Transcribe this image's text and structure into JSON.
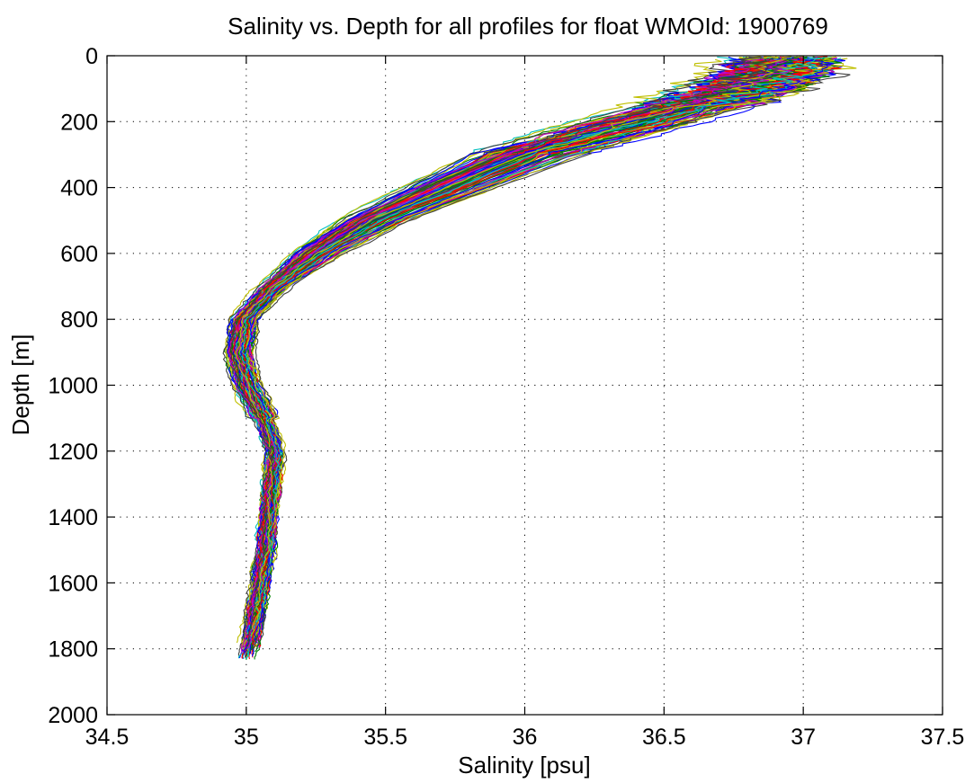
{
  "chart_data": {
    "type": "line",
    "title": "Salinity vs. Depth for all profiles for float WMOId: 1900769",
    "xlabel": "Salinity [psu]",
    "ylabel": "Depth [m]",
    "xlim": [
      34.5,
      37.5
    ],
    "ylim": [
      2000,
      0
    ],
    "y_inverted": true,
    "grid": true,
    "grid_style": "dotted",
    "x_ticks": [
      "34.5",
      "35",
      "35.5",
      "36",
      "36.5",
      "37",
      "37.5"
    ],
    "y_ticks": [
      "0",
      "200",
      "400",
      "600",
      "800",
      "1000",
      "1200",
      "1400",
      "1600",
      "1800",
      "2000"
    ],
    "series_colors": [
      "#0000ff",
      "#008000",
      "#ff0000",
      "#00bfbf",
      "#bf00bf",
      "#bfbf00",
      "#404040"
    ],
    "mean_profile": {
      "depth": [
        0,
        50,
        100,
        150,
        200,
        250,
        300,
        400,
        500,
        600,
        700,
        800,
        900,
        1000,
        1100,
        1200,
        1300,
        1400,
        1500,
        1600,
        1700,
        1800,
        1830
      ],
      "salinity": [
        36.95,
        36.9,
        36.78,
        36.6,
        36.4,
        36.2,
        36.0,
        35.72,
        35.45,
        35.25,
        35.1,
        34.99,
        34.97,
        35.0,
        35.06,
        35.1,
        35.09,
        35.08,
        35.07,
        35.05,
        35.03,
        35.01,
        35.0
      ]
    },
    "profile_count": 140
  }
}
